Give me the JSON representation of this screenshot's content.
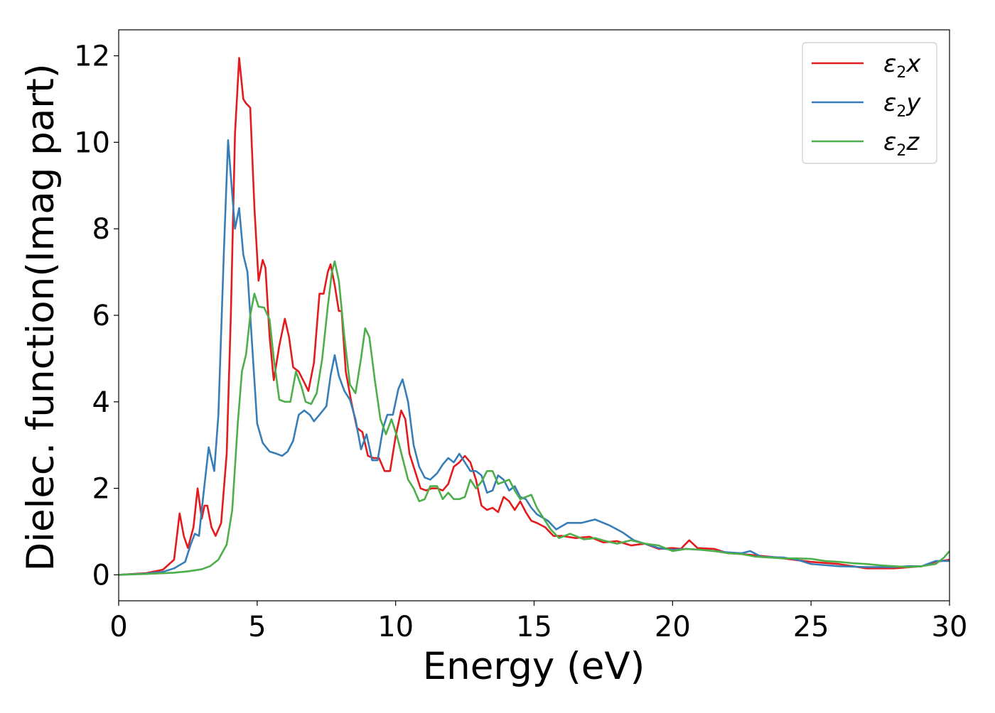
{
  "chart_data": {
    "type": "line",
    "title": "",
    "xlabel": "Energy (eV)",
    "ylabel": "Dielec. function(Imag part)",
    "xlim": [
      0,
      30
    ],
    "ylim": [
      -0.6,
      12.6
    ],
    "xticks": [
      0,
      5,
      10,
      15,
      20,
      25,
      30
    ],
    "yticks": [
      0,
      2,
      4,
      6,
      8,
      10,
      12
    ],
    "grid": false,
    "legend_position": "top-right",
    "series": [
      {
        "name": "ε₂x",
        "label_main": "ε",
        "label_sub": "2",
        "label_tail": "x",
        "color": "#e41a1c",
        "points": [
          [
            0,
            0
          ],
          [
            1.0,
            0.04
          ],
          [
            1.6,
            0.12
          ],
          [
            2.0,
            0.35
          ],
          [
            2.2,
            1.42
          ],
          [
            2.35,
            0.9
          ],
          [
            2.5,
            0.62
          ],
          [
            2.7,
            1.1
          ],
          [
            2.85,
            2.0
          ],
          [
            3.0,
            1.3
          ],
          [
            3.1,
            1.6
          ],
          [
            3.2,
            1.6
          ],
          [
            3.35,
            1.1
          ],
          [
            3.5,
            0.9
          ],
          [
            3.7,
            1.2
          ],
          [
            3.9,
            2.8
          ],
          [
            4.05,
            6.0
          ],
          [
            4.2,
            10.2
          ],
          [
            4.35,
            11.95
          ],
          [
            4.5,
            11.0
          ],
          [
            4.6,
            10.9
          ],
          [
            4.75,
            10.8
          ],
          [
            4.9,
            8.5
          ],
          [
            5.05,
            6.8
          ],
          [
            5.2,
            7.28
          ],
          [
            5.3,
            7.1
          ],
          [
            5.45,
            5.5
          ],
          [
            5.6,
            4.5
          ],
          [
            5.8,
            5.3
          ],
          [
            6.0,
            5.92
          ],
          [
            6.15,
            5.5
          ],
          [
            6.3,
            4.8
          ],
          [
            6.5,
            4.7
          ],
          [
            6.7,
            4.45
          ],
          [
            6.85,
            4.25
          ],
          [
            7.05,
            4.9
          ],
          [
            7.25,
            6.5
          ],
          [
            7.4,
            6.5
          ],
          [
            7.55,
            7.0
          ],
          [
            7.65,
            7.18
          ],
          [
            7.8,
            6.7
          ],
          [
            7.95,
            6.1
          ],
          [
            8.05,
            6.1
          ],
          [
            8.2,
            4.7
          ],
          [
            8.4,
            4.0
          ],
          [
            8.6,
            3.4
          ],
          [
            8.8,
            3.3
          ],
          [
            9.0,
            2.75
          ],
          [
            9.2,
            2.7
          ],
          [
            9.4,
            2.7
          ],
          [
            9.6,
            2.4
          ],
          [
            9.8,
            2.4
          ],
          [
            10.0,
            3.2
          ],
          [
            10.2,
            3.8
          ],
          [
            10.35,
            3.6
          ],
          [
            10.5,
            2.8
          ],
          [
            10.7,
            2.4
          ],
          [
            10.9,
            2.0
          ],
          [
            11.1,
            1.95
          ],
          [
            11.3,
            2.0
          ],
          [
            11.5,
            2.0
          ],
          [
            11.7,
            1.95
          ],
          [
            11.9,
            2.1
          ],
          [
            12.1,
            2.5
          ],
          [
            12.3,
            2.6
          ],
          [
            12.5,
            2.75
          ],
          [
            12.7,
            2.6
          ],
          [
            12.9,
            2.2
          ],
          [
            13.1,
            1.6
          ],
          [
            13.3,
            1.5
          ],
          [
            13.5,
            1.55
          ],
          [
            13.7,
            1.45
          ],
          [
            13.9,
            1.8
          ],
          [
            14.1,
            1.7
          ],
          [
            14.3,
            1.5
          ],
          [
            14.5,
            1.7
          ],
          [
            14.7,
            1.45
          ],
          [
            14.9,
            1.25
          ],
          [
            15.1,
            1.2
          ],
          [
            15.4,
            1.1
          ],
          [
            15.7,
            0.9
          ],
          [
            16.0,
            0.9
          ],
          [
            16.5,
            0.85
          ],
          [
            17.0,
            0.88
          ],
          [
            17.5,
            0.75
          ],
          [
            18.0,
            0.78
          ],
          [
            18.5,
            0.68
          ],
          [
            19.0,
            0.72
          ],
          [
            19.5,
            0.6
          ],
          [
            20.0,
            0.62
          ],
          [
            20.3,
            0.6
          ],
          [
            20.6,
            0.8
          ],
          [
            20.9,
            0.62
          ],
          [
            21.5,
            0.6
          ],
          [
            22.0,
            0.5
          ],
          [
            22.5,
            0.48
          ],
          [
            23.0,
            0.45
          ],
          [
            23.5,
            0.42
          ],
          [
            24.0,
            0.38
          ],
          [
            25.0,
            0.3
          ],
          [
            26.0,
            0.25
          ],
          [
            27.0,
            0.15
          ],
          [
            28.0,
            0.15
          ],
          [
            29.0,
            0.2
          ],
          [
            29.5,
            0.3
          ],
          [
            30.0,
            0.35
          ]
        ]
      },
      {
        "name": "ε₂y",
        "label_main": "ε",
        "label_sub": "2",
        "label_tail": "y",
        "color": "#377eb8",
        "points": [
          [
            0,
            0
          ],
          [
            1.0,
            0.03
          ],
          [
            1.6,
            0.07
          ],
          [
            2.0,
            0.15
          ],
          [
            2.4,
            0.3
          ],
          [
            2.6,
            0.7
          ],
          [
            2.75,
            0.95
          ],
          [
            2.9,
            0.9
          ],
          [
            3.05,
            1.8
          ],
          [
            3.25,
            2.95
          ],
          [
            3.45,
            2.4
          ],
          [
            3.6,
            3.7
          ],
          [
            3.8,
            7.5
          ],
          [
            3.95,
            10.05
          ],
          [
            4.1,
            8.8
          ],
          [
            4.2,
            8.0
          ],
          [
            4.35,
            8.48
          ],
          [
            4.5,
            7.4
          ],
          [
            4.65,
            7.0
          ],
          [
            4.85,
            5.0
          ],
          [
            5.0,
            3.5
          ],
          [
            5.2,
            3.05
          ],
          [
            5.45,
            2.85
          ],
          [
            5.7,
            2.8
          ],
          [
            5.9,
            2.75
          ],
          [
            6.1,
            2.85
          ],
          [
            6.3,
            3.1
          ],
          [
            6.5,
            3.7
          ],
          [
            6.7,
            3.8
          ],
          [
            6.9,
            3.7
          ],
          [
            7.05,
            3.55
          ],
          [
            7.25,
            3.7
          ],
          [
            7.5,
            3.9
          ],
          [
            7.65,
            4.6
          ],
          [
            7.8,
            5.08
          ],
          [
            7.95,
            4.6
          ],
          [
            8.15,
            4.25
          ],
          [
            8.35,
            4.05
          ],
          [
            8.55,
            3.6
          ],
          [
            8.75,
            2.9
          ],
          [
            8.95,
            3.25
          ],
          [
            9.15,
            2.65
          ],
          [
            9.35,
            2.65
          ],
          [
            9.55,
            3.4
          ],
          [
            9.7,
            3.7
          ],
          [
            9.9,
            3.7
          ],
          [
            10.1,
            4.3
          ],
          [
            10.25,
            4.52
          ],
          [
            10.45,
            4.0
          ],
          [
            10.65,
            3.0
          ],
          [
            10.85,
            2.5
          ],
          [
            11.05,
            2.25
          ],
          [
            11.25,
            2.2
          ],
          [
            11.5,
            2.35
          ],
          [
            11.7,
            2.55
          ],
          [
            11.9,
            2.7
          ],
          [
            12.1,
            2.6
          ],
          [
            12.3,
            2.8
          ],
          [
            12.5,
            2.6
          ],
          [
            12.7,
            2.4
          ],
          [
            12.9,
            2.4
          ],
          [
            13.1,
            2.3
          ],
          [
            13.3,
            1.9
          ],
          [
            13.5,
            1.95
          ],
          [
            13.7,
            2.3
          ],
          [
            13.9,
            2.2
          ],
          [
            14.1,
            1.95
          ],
          [
            14.3,
            2.05
          ],
          [
            14.5,
            1.8
          ],
          [
            14.7,
            1.75
          ],
          [
            14.9,
            1.55
          ],
          [
            15.1,
            1.4
          ],
          [
            15.5,
            1.25
          ],
          [
            15.8,
            1.05
          ],
          [
            16.2,
            1.2
          ],
          [
            16.7,
            1.2
          ],
          [
            17.2,
            1.28
          ],
          [
            17.7,
            1.15
          ],
          [
            18.2,
            0.98
          ],
          [
            18.6,
            0.8
          ],
          [
            19.0,
            0.72
          ],
          [
            19.5,
            0.62
          ],
          [
            20.0,
            0.58
          ],
          [
            20.5,
            0.6
          ],
          [
            21.0,
            0.58
          ],
          [
            21.5,
            0.55
          ],
          [
            22.0,
            0.52
          ],
          [
            22.5,
            0.5
          ],
          [
            22.8,
            0.55
          ],
          [
            23.2,
            0.42
          ],
          [
            24.0,
            0.4
          ],
          [
            24.5,
            0.35
          ],
          [
            25.0,
            0.25
          ],
          [
            26.0,
            0.2
          ],
          [
            27.0,
            0.18
          ],
          [
            28.0,
            0.18
          ],
          [
            28.5,
            0.2
          ],
          [
            29.0,
            0.2
          ],
          [
            29.5,
            0.32
          ],
          [
            30.0,
            0.32
          ]
        ]
      },
      {
        "name": "ε₂z",
        "label_main": "ε",
        "label_sub": "2",
        "label_tail": "z",
        "color": "#4daf4a",
        "points": [
          [
            0,
            0
          ],
          [
            1.0,
            0.02
          ],
          [
            2.0,
            0.05
          ],
          [
            2.5,
            0.08
          ],
          [
            3.0,
            0.13
          ],
          [
            3.3,
            0.2
          ],
          [
            3.6,
            0.35
          ],
          [
            3.9,
            0.7
          ],
          [
            4.1,
            1.5
          ],
          [
            4.3,
            3.5
          ],
          [
            4.45,
            4.7
          ],
          [
            4.6,
            5.1
          ],
          [
            4.75,
            6.0
          ],
          [
            4.9,
            6.5
          ],
          [
            5.05,
            6.2
          ],
          [
            5.25,
            6.18
          ],
          [
            5.45,
            5.9
          ],
          [
            5.6,
            5.0
          ],
          [
            5.8,
            4.05
          ],
          [
            6.0,
            4.0
          ],
          [
            6.2,
            4.0
          ],
          [
            6.4,
            4.7
          ],
          [
            6.6,
            4.35
          ],
          [
            6.75,
            4.0
          ],
          [
            6.95,
            3.95
          ],
          [
            7.15,
            4.2
          ],
          [
            7.35,
            5.0
          ],
          [
            7.55,
            6.2
          ],
          [
            7.7,
            7.0
          ],
          [
            7.8,
            7.25
          ],
          [
            7.95,
            6.8
          ],
          [
            8.15,
            5.5
          ],
          [
            8.35,
            4.4
          ],
          [
            8.55,
            4.2
          ],
          [
            8.75,
            5.0
          ],
          [
            8.9,
            5.7
          ],
          [
            9.05,
            5.5
          ],
          [
            9.25,
            4.5
          ],
          [
            9.45,
            3.6
          ],
          [
            9.65,
            3.25
          ],
          [
            9.85,
            3.6
          ],
          [
            10.05,
            3.2
          ],
          [
            10.25,
            2.7
          ],
          [
            10.45,
            2.2
          ],
          [
            10.65,
            2.0
          ],
          [
            10.85,
            1.7
          ],
          [
            11.05,
            1.75
          ],
          [
            11.25,
            2.05
          ],
          [
            11.5,
            2.05
          ],
          [
            11.7,
            1.75
          ],
          [
            11.9,
            1.9
          ],
          [
            12.1,
            1.75
          ],
          [
            12.3,
            1.75
          ],
          [
            12.5,
            1.8
          ],
          [
            12.7,
            2.2
          ],
          [
            12.9,
            2.0
          ],
          [
            13.1,
            2.15
          ],
          [
            13.3,
            2.4
          ],
          [
            13.5,
            2.4
          ],
          [
            13.7,
            2.1
          ],
          [
            13.9,
            2.15
          ],
          [
            14.1,
            2.2
          ],
          [
            14.3,
            1.95
          ],
          [
            14.5,
            1.75
          ],
          [
            14.7,
            1.8
          ],
          [
            14.9,
            1.85
          ],
          [
            15.1,
            1.55
          ],
          [
            15.3,
            1.35
          ],
          [
            15.6,
            1.05
          ],
          [
            15.9,
            0.85
          ],
          [
            16.3,
            0.95
          ],
          [
            16.8,
            0.82
          ],
          [
            17.2,
            0.85
          ],
          [
            17.6,
            0.78
          ],
          [
            18.0,
            0.72
          ],
          [
            18.5,
            0.8
          ],
          [
            19.0,
            0.72
          ],
          [
            19.5,
            0.68
          ],
          [
            20.0,
            0.55
          ],
          [
            20.5,
            0.6
          ],
          [
            21.0,
            0.58
          ],
          [
            21.5,
            0.55
          ],
          [
            22.0,
            0.5
          ],
          [
            22.5,
            0.48
          ],
          [
            23.0,
            0.42
          ],
          [
            23.5,
            0.4
          ],
          [
            24.0,
            0.38
          ],
          [
            24.5,
            0.38
          ],
          [
            25.0,
            0.37
          ],
          [
            25.5,
            0.32
          ],
          [
            26.0,
            0.3
          ],
          [
            26.5,
            0.27
          ],
          [
            27.0,
            0.25
          ],
          [
            27.5,
            0.22
          ],
          [
            28.0,
            0.2
          ],
          [
            28.5,
            0.18
          ],
          [
            29.0,
            0.2
          ],
          [
            29.5,
            0.25
          ],
          [
            29.8,
            0.4
          ],
          [
            30.0,
            0.55
          ]
        ]
      }
    ]
  }
}
